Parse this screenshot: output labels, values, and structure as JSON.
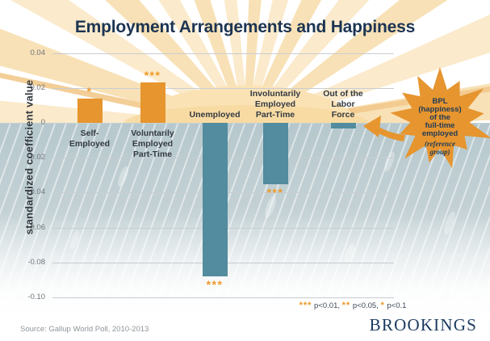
{
  "title": "Employment Arrangements and Happiness",
  "source": "Source: Gallup World Poll, 2010-2013",
  "brand": "BROOKINGS",
  "colors": {
    "orange": "#E6952F",
    "teal": "#528C9E",
    "accent_stars": "#EF9A2B",
    "navy": "#1C3452"
  },
  "legend": {
    "segments": [
      {
        "stars": "***",
        "text": " p<0.01, "
      },
      {
        "stars": "**",
        "text": " p<0.05, "
      },
      {
        "stars": "*",
        "text": " p<0.1"
      }
    ]
  },
  "starburst": {
    "lines": [
      "BPL",
      "(happiness)",
      "of the",
      "full-time",
      "employed"
    ],
    "ref_lines": [
      "(reference",
      "group)"
    ]
  },
  "chart_data": {
    "type": "bar",
    "title": "Employment Arrangements and Happiness",
    "xlabel": "",
    "ylabel": "standardized coefficient value",
    "ylim": [
      -0.1,
      0.04
    ],
    "yticks": [
      0.04,
      0.02,
      0,
      -0.02,
      -0.04,
      -0.06,
      -0.08,
      -0.1
    ],
    "ytick_labels": [
      "0.04",
      "0.02",
      "0",
      "-0.02",
      "-0.04",
      "-0.06",
      "-0.08",
      "-0.10"
    ],
    "grid": true,
    "legend_position": "bottom-right",
    "categories": [
      "Self-Employed",
      "Voluntarily Employed Part-Time",
      "Unemployed",
      "Involuntarily Employed Part-Time",
      "Out of the Labor Force"
    ],
    "bars": [
      {
        "label": "Self-\nEmployed",
        "value": 0.014,
        "significance": "*",
        "color": "orange"
      },
      {
        "label": "Voluntarily\nEmployed\nPart-Time",
        "value": 0.023,
        "significance": "***",
        "color": "orange"
      },
      {
        "label": "Unemployed",
        "value": -0.088,
        "significance": "***",
        "color": "teal"
      },
      {
        "label": "Involuntarily\nEmployed\nPart-Time",
        "value": -0.035,
        "significance": "***",
        "color": "teal"
      },
      {
        "label": "Out of the\nLabor\nForce",
        "value": -0.003,
        "significance": "",
        "color": "teal"
      }
    ],
    "reference_note": "BPL (happiness) of the full-time employed (reference group)",
    "significance_key": "*** p<0.01, ** p<0.05, * p<0.1"
  }
}
